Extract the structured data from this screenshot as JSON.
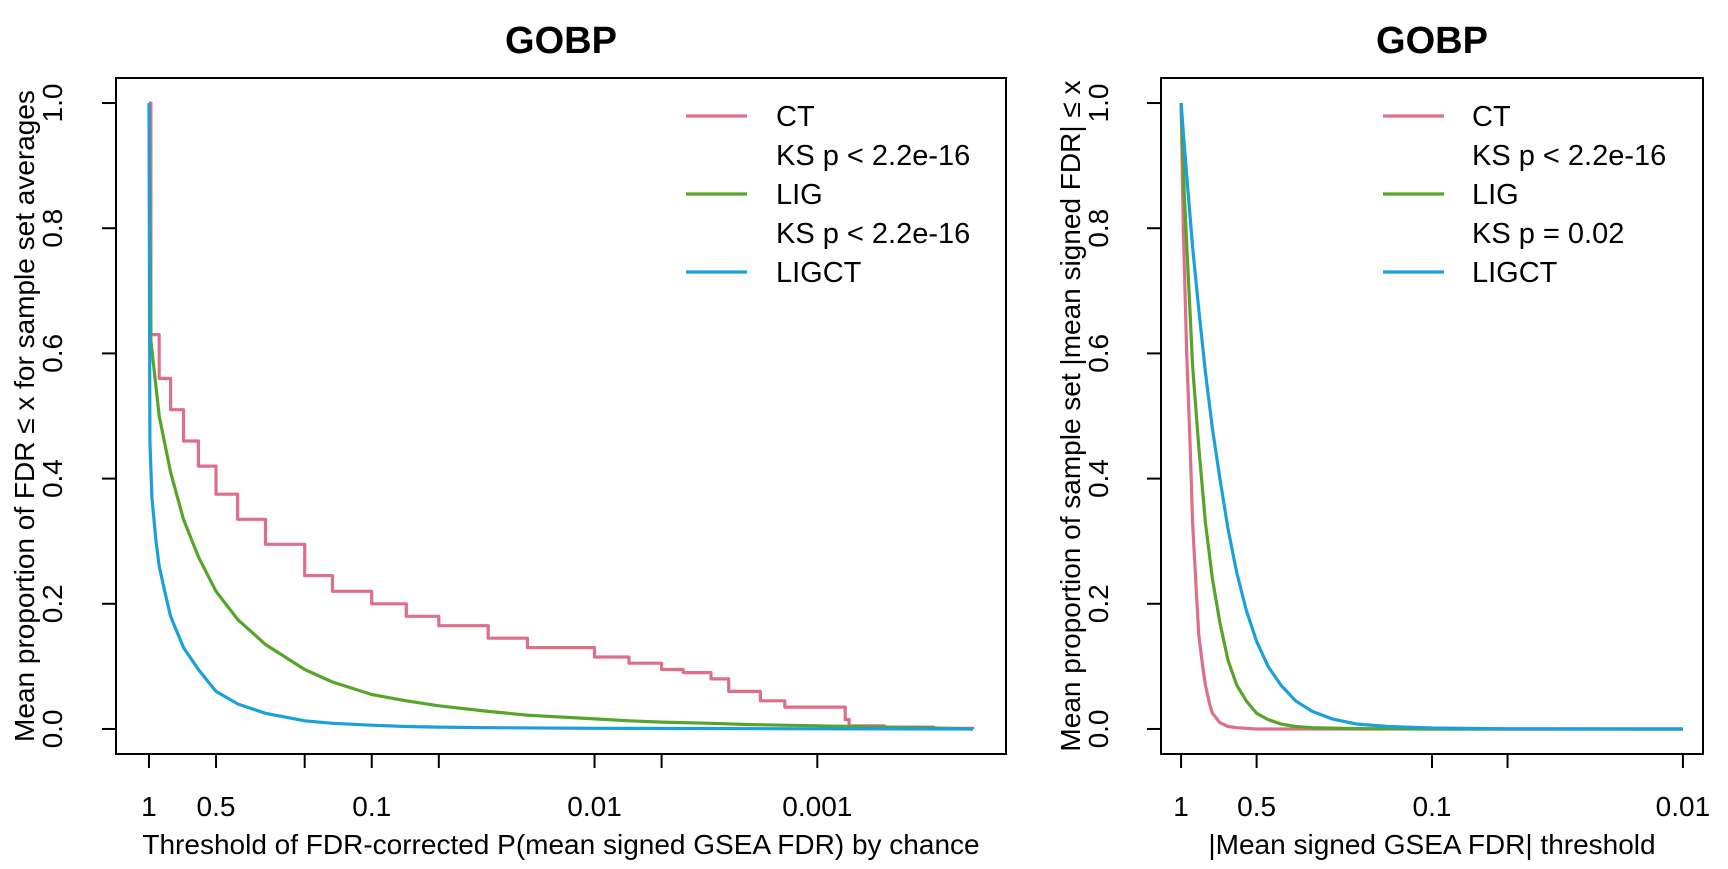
{
  "colors": {
    "CT": "#de6f8b",
    "LIG": "#56a52a",
    "LIGCT": "#1aa0dc"
  },
  "chart_data": [
    {
      "type": "line",
      "title": "GOBP",
      "xlabel": "Threshold of FDR-corrected P(mean signed GSEA FDR) by chance",
      "ylabel": "Mean proportion of FDR ≤ x for sample set averages",
      "x_scale": "log10-reversed",
      "xlim": [
        1,
        0.0002
      ],
      "ylim": [
        0,
        1
      ],
      "x_ticks": [
        1,
        0.5,
        0.2,
        0.1,
        0.05,
        0.01,
        0.005,
        0.001
      ],
      "x_tick_labels": [
        "1",
        "0.5",
        "",
        "0.1",
        "",
        "0.01",
        "",
        "0.001"
      ],
      "y_ticks": [
        0.0,
        0.2,
        0.4,
        0.6,
        0.8,
        1.0
      ],
      "y_tick_labels": [
        "0.0",
        "0.2",
        "0.4",
        "0.6",
        "0.8",
        "1.0"
      ],
      "legend": {
        "position": "top-right",
        "entries": [
          {
            "label": "CT",
            "series": "CT"
          },
          {
            "label": "KS p < 2.2e-16",
            "series": null
          },
          {
            "label": "LIG",
            "series": "LIG"
          },
          {
            "label": "KS p < 2.2e-16",
            "series": null
          },
          {
            "label": "LIGCT",
            "series": "LIGCT"
          }
        ]
      },
      "series": [
        {
          "name": "CT",
          "x": [
            1,
            0.98,
            0.9,
            0.8,
            0.7,
            0.6,
            0.5,
            0.4,
            0.3,
            0.2,
            0.15,
            0.1,
            0.07,
            0.05,
            0.03,
            0.02,
            0.01,
            0.007,
            0.005,
            0.004,
            0.003,
            0.0025,
            0.0022,
            0.0018,
            0.0016,
            0.0014,
            0.0012,
            0.001,
            0.0008,
            0.00075,
            0.00072,
            0.0005,
            0.0003,
            0.0002
          ],
          "y": [
            1.0,
            0.63,
            0.56,
            0.51,
            0.46,
            0.42,
            0.375,
            0.335,
            0.295,
            0.245,
            0.22,
            0.2,
            0.18,
            0.165,
            0.145,
            0.13,
            0.115,
            0.105,
            0.095,
            0.09,
            0.08,
            0.06,
            0.06,
            0.045,
            0.045,
            0.035,
            0.035,
            0.035,
            0.035,
            0.015,
            0.005,
            0.003,
            0.001,
            0.0
          ],
          "step": true
        },
        {
          "name": "LIG",
          "x": [
            1,
            0.98,
            0.9,
            0.8,
            0.7,
            0.6,
            0.5,
            0.4,
            0.3,
            0.2,
            0.15,
            0.1,
            0.07,
            0.05,
            0.03,
            0.02,
            0.01,
            0.007,
            0.005,
            0.003,
            0.002,
            0.001,
            0.0007,
            0.0005,
            0.0003,
            0.0002
          ],
          "y": [
            1.0,
            0.62,
            0.5,
            0.41,
            0.335,
            0.275,
            0.22,
            0.175,
            0.135,
            0.095,
            0.075,
            0.055,
            0.045,
            0.037,
            0.028,
            0.022,
            0.016,
            0.013,
            0.011,
            0.009,
            0.007,
            0.005,
            0.004,
            0.003,
            0.0015,
            0.0
          ],
          "step": false
        },
        {
          "name": "LIGCT",
          "x": [
            1,
            0.99,
            0.97,
            0.93,
            0.9,
            0.85,
            0.8,
            0.7,
            0.6,
            0.5,
            0.4,
            0.3,
            0.2,
            0.15,
            0.1,
            0.07,
            0.05,
            0.03,
            0.01,
            0.001,
            0.0002
          ],
          "y": [
            1.0,
            0.46,
            0.37,
            0.3,
            0.26,
            0.22,
            0.18,
            0.13,
            0.095,
            0.06,
            0.04,
            0.025,
            0.013,
            0.009,
            0.006,
            0.004,
            0.003,
            0.002,
            0.001,
            0.0003,
            0.0
          ],
          "step": false
        }
      ]
    },
    {
      "type": "line",
      "title": "GOBP",
      "xlabel": "|Mean signed GSEA FDR| threshold",
      "ylabel": "Mean proportion of sample set |mean signed FDR| ≤ x",
      "x_scale": "log10-reversed",
      "xlim": [
        1,
        0.01
      ],
      "ylim": [
        0,
        1
      ],
      "x_ticks": [
        1,
        0.5,
        0.1,
        0.05,
        0.01
      ],
      "x_tick_labels": [
        "1",
        "0.5",
        "0.1",
        "",
        "0.01"
      ],
      "y_ticks": [
        0.0,
        0.2,
        0.4,
        0.6,
        0.8,
        1.0
      ],
      "y_tick_labels": [
        "0.0",
        "0.2",
        "0.4",
        "0.6",
        "0.8",
        "1.0"
      ],
      "legend": {
        "position": "top-right",
        "entries": [
          {
            "label": "CT",
            "series": "CT"
          },
          {
            "label": "KS p < 2.2e-16",
            "series": null
          },
          {
            "label": "LIG",
            "series": "LIG"
          },
          {
            "label": "KS p = 0.02",
            "series": null
          },
          {
            "label": "LIGCT",
            "series": "LIGCT"
          }
        ]
      },
      "series": [
        {
          "name": "CT",
          "x": [
            1,
            0.98,
            0.95,
            0.92,
            0.9,
            0.87,
            0.85,
            0.82,
            0.8,
            0.77,
            0.75,
            0.7,
            0.65,
            0.6,
            0.5,
            0.3,
            0.1,
            0.01
          ],
          "y": [
            1.0,
            0.8,
            0.6,
            0.45,
            0.33,
            0.22,
            0.15,
            0.1,
            0.07,
            0.04,
            0.025,
            0.01,
            0.004,
            0.002,
            0.0,
            0.0,
            0.0,
            0.0
          ],
          "step": false
        },
        {
          "name": "LIG",
          "x": [
            1,
            0.97,
            0.93,
            0.9,
            0.85,
            0.8,
            0.75,
            0.7,
            0.65,
            0.6,
            0.55,
            0.5,
            0.45,
            0.4,
            0.35,
            0.3,
            0.2,
            0.1,
            0.01
          ],
          "y": [
            1.0,
            0.85,
            0.7,
            0.58,
            0.45,
            0.33,
            0.24,
            0.17,
            0.11,
            0.07,
            0.045,
            0.025,
            0.015,
            0.008,
            0.004,
            0.002,
            0.0005,
            0.0,
            0.0
          ],
          "step": false
        },
        {
          "name": "LIGCT",
          "x": [
            1,
            0.97,
            0.93,
            0.9,
            0.85,
            0.8,
            0.75,
            0.7,
            0.65,
            0.6,
            0.55,
            0.5,
            0.45,
            0.4,
            0.35,
            0.3,
            0.25,
            0.2,
            0.15,
            0.1,
            0.05,
            0.01
          ],
          "y": [
            1.0,
            0.93,
            0.84,
            0.77,
            0.67,
            0.57,
            0.48,
            0.4,
            0.32,
            0.25,
            0.19,
            0.14,
            0.1,
            0.07,
            0.045,
            0.028,
            0.016,
            0.008,
            0.004,
            0.0015,
            0.0003,
            0.0
          ],
          "step": false
        }
      ]
    }
  ]
}
